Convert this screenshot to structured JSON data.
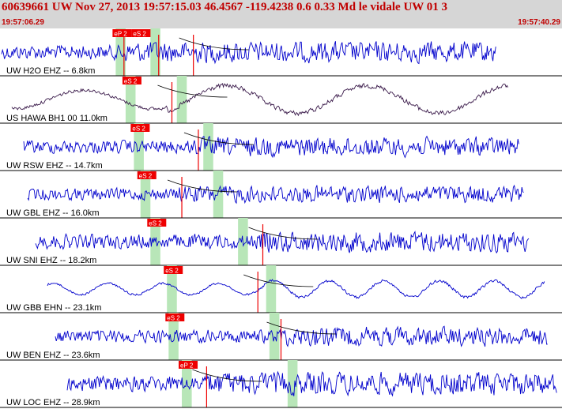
{
  "header": {
    "title": "60639661 UW Nov 27, 2013 19:57:15.03    46.4567 -119.4238  0.6 0.33 Md le vidale UW 01    3",
    "start_time": "19:57:06.29",
    "end_time": "19:57:40.29"
  },
  "colors": {
    "trace": "#0000cc",
    "hawa_trace": "#3a1a4a",
    "pick_box": "#ee0000",
    "pick_text": "#ffffff",
    "window": "#b8e6b8",
    "fit_curve": "#000000"
  },
  "chart_data": {
    "type": "seismogram",
    "time_range_s": [
      0,
      34
    ],
    "traces": [
      {
        "label": "UW H2O EHZ -- 6.8km",
        "picks": [
          "eP 2",
          "eS 2"
        ],
        "windows_s": [
          [
            7.0,
            7.6
          ],
          [
            9.1,
            9.7
          ]
        ],
        "lines_s": [
          7.5,
          9.6,
          11.7
        ]
      },
      {
        "label": "US HAWA BH1 00 11.0km",
        "picks": [
          "eS 2"
        ],
        "windows_s": [
          [
            7.6,
            8.2
          ],
          [
            10.7,
            11.3
          ]
        ],
        "lines_s": [
          10.4
        ]
      },
      {
        "label": "UW RSW EHZ -- 14.7km",
        "picks": [
          "eS 2"
        ],
        "windows_s": [
          [
            8.1,
            8.7
          ],
          [
            12.3,
            12.9
          ]
        ],
        "lines_s": [
          12.0
        ]
      },
      {
        "label": "UW GBL EHZ -- 16.0km",
        "picks": [
          "eS 2"
        ],
        "windows_s": [
          [
            8.5,
            9.1
          ],
          [
            12.9,
            13.5
          ]
        ],
        "lines_s": [
          11.0
        ]
      },
      {
        "label": "UW SNI EHZ -- 18.2km",
        "picks": [
          "eS 2"
        ],
        "windows_s": [
          [
            9.1,
            9.7
          ],
          [
            14.4,
            15.0
          ]
        ],
        "lines_s": [
          15.9
        ]
      },
      {
        "label": "UW GBB EHN -- 23.1km",
        "picks": [
          "eS 2"
        ],
        "windows_s": [
          [
            10.1,
            10.7
          ],
          [
            16.1,
            16.7
          ]
        ],
        "lines_s": [
          15.6
        ]
      },
      {
        "label": "UW BEN EHZ -- 23.6km",
        "picks": [
          "eS 2"
        ],
        "windows_s": [
          [
            10.2,
            10.8
          ],
          [
            16.3,
            16.9
          ]
        ],
        "lines_s": [
          17.0
        ]
      },
      {
        "label": "UW LOC EHZ -- 28.9km",
        "picks": [
          "eP 2"
        ],
        "windows_s": [
          [
            11.0,
            11.6
          ],
          [
            17.4,
            18.0
          ]
        ],
        "lines_s": [
          12.5
        ]
      }
    ]
  }
}
